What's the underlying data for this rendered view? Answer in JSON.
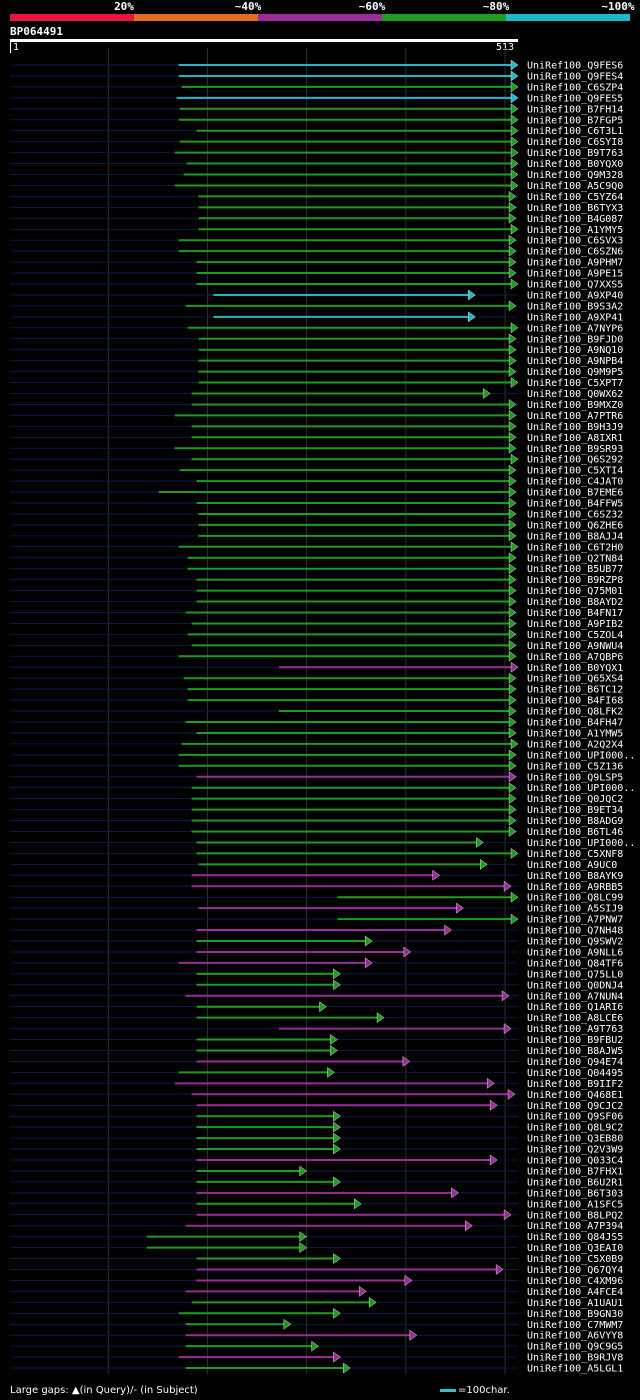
{
  "scale": {
    "labels": [
      "20%",
      "~40%",
      "~60%",
      "~80%",
      "~100%"
    ],
    "colors": [
      "#e8143c",
      "#e06e1e",
      "#9a2c9a",
      "#1f9c1f",
      "#20b8c8"
    ]
  },
  "query": {
    "id": "BP064491",
    "start": "1",
    "end": "513",
    "length": 513
  },
  "hits": [
    {
      "name": "UniRef100_Q9FES6",
      "start": 171,
      "end": 513,
      "c": 4
    },
    {
      "name": "UniRef100_Q9FES4",
      "start": 171,
      "end": 513,
      "c": 4
    },
    {
      "name": "UniRef100_C6SZP4",
      "start": 174,
      "end": 513,
      "c": 3
    },
    {
      "name": "UniRef100_Q9FES5",
      "start": 169,
      "end": 513,
      "c": 4
    },
    {
      "name": "UniRef100_B7FH14",
      "start": 172,
      "end": 513,
      "c": 3
    },
    {
      "name": "UniRef100_B7FGP5",
      "start": 171,
      "end": 513,
      "c": 3
    },
    {
      "name": "UniRef100_C6T3L1",
      "start": 189,
      "end": 513,
      "c": 3
    },
    {
      "name": "UniRef100_C6SYI8",
      "start": 172,
      "end": 513,
      "c": 3
    },
    {
      "name": "UniRef100_B9T763",
      "start": 167,
      "end": 513,
      "c": 3
    },
    {
      "name": "UniRef100_B0YQX0",
      "start": 179,
      "end": 513,
      "c": 3
    },
    {
      "name": "UniRef100_Q9M328",
      "start": 176,
      "end": 513,
      "c": 3
    },
    {
      "name": "UniRef100_A5C9Q0",
      "start": 167,
      "end": 513,
      "c": 3
    },
    {
      "name": "UniRef100_C5YZ64",
      "start": 191,
      "end": 511,
      "c": 3
    },
    {
      "name": "UniRef100_B6TYX3",
      "start": 191,
      "end": 511,
      "c": 3
    },
    {
      "name": "UniRef100_B4G087",
      "start": 191,
      "end": 511,
      "c": 3
    },
    {
      "name": "UniRef100_A1YMY5",
      "start": 191,
      "end": 513,
      "c": 3
    },
    {
      "name": "UniRef100_C6SVX3",
      "start": 171,
      "end": 511,
      "c": 3
    },
    {
      "name": "UniRef100_C6SZN6",
      "start": 171,
      "end": 511,
      "c": 3
    },
    {
      "name": "UniRef100_A9PHM7",
      "start": 189,
      "end": 511,
      "c": 3
    },
    {
      "name": "UniRef100_A9PE15",
      "start": 189,
      "end": 511,
      "c": 3
    },
    {
      "name": "UniRef100_Q7XXS5",
      "start": 189,
      "end": 513,
      "c": 3
    },
    {
      "name": "UniRef100_A9XP40",
      "start": 206,
      "end": 470,
      "c": 4
    },
    {
      "name": "UniRef100_B9S3A2",
      "start": 178,
      "end": 511,
      "c": 3
    },
    {
      "name": "UniRef100_A9XP41",
      "start": 206,
      "end": 470,
      "c": 4
    },
    {
      "name": "UniRef100_A7NYP6",
      "start": 180,
      "end": 513,
      "c": 3
    },
    {
      "name": "UniRef100_B9FJD0",
      "start": 191,
      "end": 511,
      "c": 3
    },
    {
      "name": "UniRef100_A9NQ10",
      "start": 191,
      "end": 511,
      "c": 3
    },
    {
      "name": "UniRef100_A9NPB4",
      "start": 191,
      "end": 511,
      "c": 3
    },
    {
      "name": "UniRef100_Q9M9P5",
      "start": 191,
      "end": 511,
      "c": 3
    },
    {
      "name": "UniRef100_C5XPT7",
      "start": 191,
      "end": 513,
      "c": 3
    },
    {
      "name": "UniRef100_Q0WX62",
      "start": 184,
      "end": 485,
      "c": 3
    },
    {
      "name": "UniRef100_B9MXZ0",
      "start": 184,
      "end": 511,
      "c": 3
    },
    {
      "name": "UniRef100_A7PTR6",
      "start": 167,
      "end": 511,
      "c": 3
    },
    {
      "name": "UniRef100_B9H3J9",
      "start": 184,
      "end": 511,
      "c": 3
    },
    {
      "name": "UniRef100_A8IXR1",
      "start": 184,
      "end": 511,
      "c": 3
    },
    {
      "name": "UniRef100_B9SR93",
      "start": 167,
      "end": 511,
      "c": 3
    },
    {
      "name": "UniRef100_Q6S292",
      "start": 184,
      "end": 513,
      "c": 3
    },
    {
      "name": "UniRef100_C5XTI4",
      "start": 172,
      "end": 511,
      "c": 3
    },
    {
      "name": "UniRef100_C4JAT0",
      "start": 189,
      "end": 511,
      "c": 3
    },
    {
      "name": "UniRef100_B7EME6",
      "start": 151,
      "end": 511,
      "c": 3
    },
    {
      "name": "UniRef100_B4FFW5",
      "start": 189,
      "end": 511,
      "c": 3
    },
    {
      "name": "UniRef100_C6SZ32",
      "start": 191,
      "end": 511,
      "c": 3
    },
    {
      "name": "UniRef100_Q6ZHE6",
      "start": 191,
      "end": 511,
      "c": 3
    },
    {
      "name": "UniRef100_B8AJJ4",
      "start": 191,
      "end": 511,
      "c": 3
    },
    {
      "name": "UniRef100_C6T2H0",
      "start": 171,
      "end": 513,
      "c": 3
    },
    {
      "name": "UniRef100_Q2TN84",
      "start": 180,
      "end": 511,
      "c": 3
    },
    {
      "name": "UniRef100_B5UB77",
      "start": 180,
      "end": 511,
      "c": 3
    },
    {
      "name": "UniRef100_B9RZP8",
      "start": 189,
      "end": 511,
      "c": 3
    },
    {
      "name": "UniRef100_Q75M01",
      "start": 189,
      "end": 511,
      "c": 3
    },
    {
      "name": "UniRef100_B8AYD2",
      "start": 189,
      "end": 511,
      "c": 3
    },
    {
      "name": "UniRef100_B4FN17",
      "start": 178,
      "end": 511,
      "c": 3
    },
    {
      "name": "UniRef100_A9PIB2",
      "start": 184,
      "end": 511,
      "c": 3
    },
    {
      "name": "UniRef100_C5ZOL4",
      "start": 180,
      "end": 511,
      "c": 3
    },
    {
      "name": "UniRef100_A9NWU4",
      "start": 184,
      "end": 511,
      "c": 3
    },
    {
      "name": "UniRef100_A7QBP6",
      "start": 171,
      "end": 511,
      "c": 3
    },
    {
      "name": "UniRef100_B0YQX1",
      "start": 272,
      "end": 513,
      "c": 2
    },
    {
      "name": "UniRef100_Q65XS4",
      "start": 176,
      "end": 511,
      "c": 3
    },
    {
      "name": "UniRef100_B6TC12",
      "start": 180,
      "end": 511,
      "c": 3
    },
    {
      "name": "UniRef100_B4FI68",
      "start": 180,
      "end": 511,
      "c": 3
    },
    {
      "name": "UniRef100_Q8LFK2",
      "start": 272,
      "end": 511,
      "c": 3
    },
    {
      "name": "UniRef100_B4FH47",
      "start": 178,
      "end": 511,
      "c": 3
    },
    {
      "name": "UniRef100_A1YMW5",
      "start": 189,
      "end": 511,
      "c": 3
    },
    {
      "name": "UniRef100_A2Q2X4",
      "start": 174,
      "end": 513,
      "c": 3
    },
    {
      "name": "UniRef100_UPI000..",
      "start": 171,
      "end": 511,
      "c": 3
    },
    {
      "name": "UniRef100_C5Z136",
      "start": 171,
      "end": 511,
      "c": 3
    },
    {
      "name": "UniRef100_Q9LSP5",
      "start": 189,
      "end": 511,
      "c": 2
    },
    {
      "name": "UniRef100_UPI000..",
      "start": 184,
      "end": 511,
      "c": 3
    },
    {
      "name": "UniRef100_Q0JQC2",
      "start": 184,
      "end": 511,
      "c": 3
    },
    {
      "name": "UniRef100_B9ET34",
      "start": 184,
      "end": 511,
      "c": 3
    },
    {
      "name": "UniRef100_B8ADG9",
      "start": 184,
      "end": 511,
      "c": 3
    },
    {
      "name": "UniRef100_B6TL46",
      "start": 184,
      "end": 511,
      "c": 3
    },
    {
      "name": "UniRef100_UPI000..",
      "start": 189,
      "end": 478,
      "c": 3
    },
    {
      "name": "UniRef100_C5XNF8",
      "start": 189,
      "end": 513,
      "c": 3
    },
    {
      "name": "UniRef100_A9UC0",
      "start": 191,
      "end": 482,
      "c": 3
    },
    {
      "name": "UniRef100_B8AYK9",
      "start": 184,
      "end": 434,
      "c": 2
    },
    {
      "name": "UniRef100_A9RBB5",
      "start": 184,
      "end": 506,
      "c": 2
    },
    {
      "name": "UniRef100_Q8LC99",
      "start": 331,
      "end": 513,
      "c": 3
    },
    {
      "name": "UniRef100_A5SIJ9",
      "start": 191,
      "end": 458,
      "c": 2
    },
    {
      "name": "UniRef100_A7PNW7",
      "start": 331,
      "end": 513,
      "c": 3
    },
    {
      "name": "UniRef100_Q7NH48",
      "start": 189,
      "end": 446,
      "c": 2
    },
    {
      "name": "UniRef100_Q9SWV2",
      "start": 189,
      "end": 366,
      "c": 3
    },
    {
      "name": "UniRef100_A9NLL6",
      "start": 189,
      "end": 405,
      "c": 2
    },
    {
      "name": "UniRef100_Q84TF6",
      "start": 171,
      "end": 366,
      "c": 2
    },
    {
      "name": "UniRef100_Q75LL0",
      "start": 189,
      "end": 334,
      "c": 3
    },
    {
      "name": "UniRef100_Q0DNJ4",
      "start": 189,
      "end": 334,
      "c": 3
    },
    {
      "name": "UniRef100_A7NUN4",
      "start": 178,
      "end": 504,
      "c": 2
    },
    {
      "name": "UniRef100_Q1ARI6",
      "start": 189,
      "end": 320,
      "c": 3
    },
    {
      "name": "UniRef100_A8LCE6",
      "start": 189,
      "end": 378,
      "c": 3
    },
    {
      "name": "UniRef100_A9T763",
      "start": 272,
      "end": 506,
      "c": 2
    },
    {
      "name": "UniRef100_B9FBU2",
      "start": 189,
      "end": 331,
      "c": 3
    },
    {
      "name": "UniRef100_B8AJW5",
      "start": 189,
      "end": 331,
      "c": 3
    },
    {
      "name": "UniRef100_Q94E74",
      "start": 189,
      "end": 404,
      "c": 2
    },
    {
      "name": "UniRef100_Q04495",
      "start": 171,
      "end": 328,
      "c": 3
    },
    {
      "name": "UniRef100_B9IIF2",
      "start": 167,
      "end": 489,
      "c": 2
    },
    {
      "name": "UniRef100_Q468E1",
      "start": 184,
      "end": 510,
      "c": 2
    },
    {
      "name": "UniRef100_Q9CJC2",
      "start": 189,
      "end": 492,
      "c": 2
    },
    {
      "name": "UniRef100_Q9SF06",
      "start": 189,
      "end": 334,
      "c": 3
    },
    {
      "name": "UniRef100_Q8L9C2",
      "start": 189,
      "end": 334,
      "c": 3
    },
    {
      "name": "UniRef100_Q3EB80",
      "start": 189,
      "end": 334,
      "c": 3
    },
    {
      "name": "UniRef100_Q2V3W9",
      "start": 189,
      "end": 334,
      "c": 3
    },
    {
      "name": "UniRef100_Q033C4",
      "start": 189,
      "end": 492,
      "c": 2
    },
    {
      "name": "UniRef100_B7FHX1",
      "start": 189,
      "end": 300,
      "c": 3
    },
    {
      "name": "UniRef100_B6U2R1",
      "start": 189,
      "end": 334,
      "c": 3
    },
    {
      "name": "UniRef100_B6T303",
      "start": 189,
      "end": 453,
      "c": 2
    },
    {
      "name": "UniRef100_A1SFC5",
      "start": 189,
      "end": 355,
      "c": 3
    },
    {
      "name": "UniRef100_B8LPQ2",
      "start": 189,
      "end": 506,
      "c": 2
    },
    {
      "name": "UniRef100_A7P394",
      "start": 178,
      "end": 467,
      "c": 2
    },
    {
      "name": "UniRef100_Q84JS5",
      "start": 139,
      "end": 300,
      "c": 3
    },
    {
      "name": "UniRef100_Q3EAI0",
      "start": 139,
      "end": 300,
      "c": 3
    },
    {
      "name": "UniRef100_C5X0B9",
      "start": 189,
      "end": 334,
      "c": 3
    },
    {
      "name": "UniRef100_Q67QY4",
      "start": 189,
      "end": 498,
      "c": 2
    },
    {
      "name": "UniRef100_C4XM96",
      "start": 189,
      "end": 406,
      "c": 2
    },
    {
      "name": "UniRef100_A4FCE4",
      "start": 178,
      "end": 360,
      "c": 2
    },
    {
      "name": "UniRef100_A1UAU1",
      "start": 184,
      "end": 370,
      "c": 3
    },
    {
      "name": "UniRef100_B9GN30",
      "start": 171,
      "end": 334,
      "c": 3
    },
    {
      "name": "UniRef100_C7MWM7",
      "start": 178,
      "end": 284,
      "c": 3
    },
    {
      "name": "UniRef100_A6VYY8",
      "start": 178,
      "end": 411,
      "c": 2
    },
    {
      "name": "UniRef100_Q9C9G5",
      "start": 178,
      "end": 312,
      "c": 3
    },
    {
      "name": "UniRef100_B9RJV8",
      "start": 171,
      "end": 334,
      "c": 2
    },
    {
      "name": "UniRef100_A5LGL1",
      "start": 178,
      "end": 344,
      "c": 3
    }
  ],
  "footer": {
    "gaps_label": "Large gaps: ▲(in Query)/- (in Subject)",
    "legend_label": "=100char."
  }
}
